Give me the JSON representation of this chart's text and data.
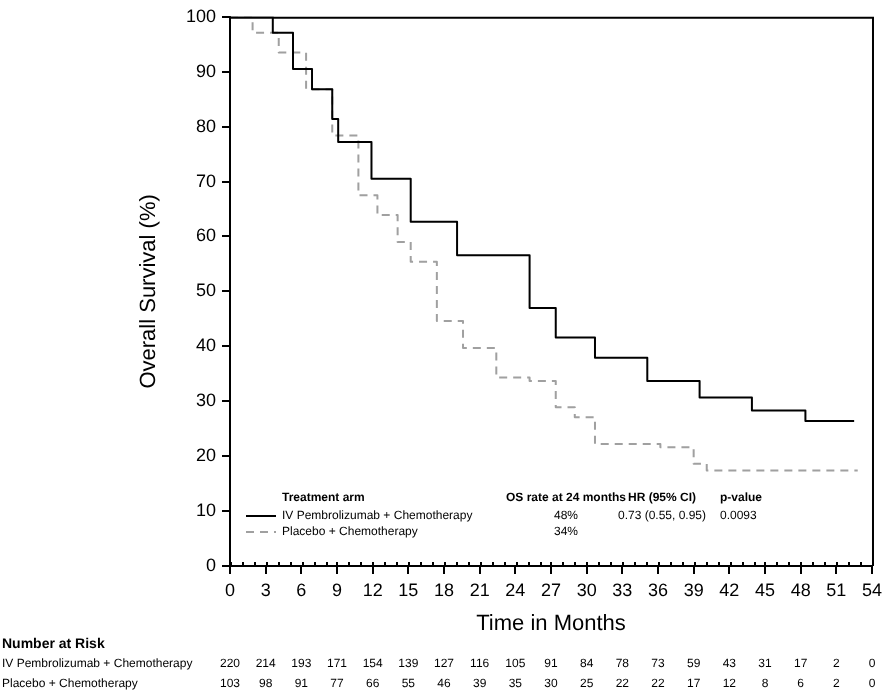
{
  "chart_data": {
    "type": "step",
    "xlabel": "Time in Months",
    "ylabel": "Overall Survival (%)",
    "xlim": [
      0,
      54
    ],
    "xticks": [
      0,
      3,
      6,
      9,
      12,
      15,
      18,
      21,
      24,
      27,
      30,
      33,
      36,
      39,
      42,
      45,
      48,
      51,
      54
    ],
    "ylim": [
      0,
      100
    ],
    "yticks": [
      0,
      10,
      20,
      30,
      40,
      50,
      60,
      70,
      80,
      90,
      100
    ],
    "grid": false,
    "legend": "bottom left",
    "marker": "none",
    "series": [
      {
        "name": "IV Pembrolizumab + Chemotherapy",
        "color": "#000000",
        "line_style": "solid",
        "x": [
          0,
          0.8,
          3.6,
          5.3,
          6.9,
          8.6,
          9.1,
          11.9,
          15.2,
          19.1,
          25.2,
          27.4,
          30.7,
          35.1,
          39.5,
          43.9,
          48.4,
          52.5
        ],
        "values": [
          100,
          100,
          97.1,
          90.5,
          86.8,
          81.4,
          77.2,
          70.5,
          62.7,
          56.6,
          47,
          41.6,
          37.9,
          33.7,
          30.7,
          28.3,
          26.4,
          26.4
        ]
      },
      {
        "name": "Placebo + Chemotherapy",
        "color": "#a0a0a0",
        "line_style": "dashed",
        "x": [
          0,
          1.9,
          4.1,
          6.4,
          8.6,
          10.8,
          12.4,
          14.1,
          15.2,
          17.4,
          19.6,
          22.4,
          25.2,
          27.4,
          29,
          30.7,
          36.2,
          39,
          40.1,
          52.8
        ],
        "values": [
          100,
          97.1,
          93.5,
          86.8,
          78.4,
          67.5,
          63.9,
          59,
          55.4,
          44.6,
          39.7,
          34.3,
          33.7,
          28.9,
          27.1,
          22.2,
          21.6,
          18.6,
          17.4,
          17.4
        ]
      }
    ],
    "annotations": [
      "Treatment arm",
      "OS rate at 24 months",
      "HR (95% CI)",
      "p-value",
      "48%",
      "0.73 (0.55, 0.95)",
      "0.0093",
      "34%",
      "Number at Risk",
      "220 214 193 171 154 139 127 116 105 91 84 78 73 59 43 31 17 2 0",
      "103 98 91 77 66 55 46 39 35 30 25 22 22 17 12 8 6 2 0"
    ]
  }
}
